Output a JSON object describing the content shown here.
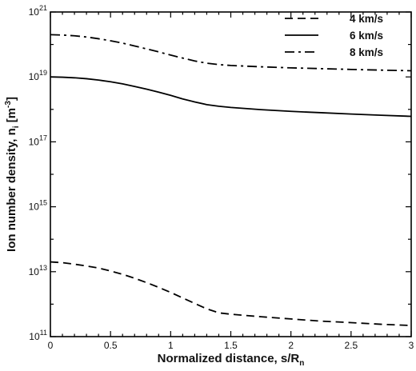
{
  "chart_data": {
    "type": "line",
    "title": "",
    "xlabel": "Normalized distance, s/R",
    "xlabel_sub": "n",
    "ylabel": "Ion number density, n",
    "ylabel_sub": "i",
    "ylabel_unit_prefix": " [m",
    "ylabel_unit_sup": "-3",
    "ylabel_unit_suffix": "]",
    "xlim": [
      0,
      3
    ],
    "ylim": [
      100000000000.0,
      1e+21
    ],
    "y_scale": "log",
    "grid": false,
    "legend_position": "top-right",
    "x_ticks": [
      {
        "value": 0,
        "label": "0"
      },
      {
        "value": 0.5,
        "label": "0.5"
      },
      {
        "value": 1,
        "label": "1"
      },
      {
        "value": 1.5,
        "label": "1.5"
      },
      {
        "value": 2,
        "label": "2"
      },
      {
        "value": 2.5,
        "label": "2.5"
      },
      {
        "value": 3,
        "label": "3"
      }
    ],
    "y_ticks": [
      {
        "value": 100000000000.0,
        "base": "10",
        "exp": "11"
      },
      {
        "value": 10000000000000.0,
        "base": "10",
        "exp": "13"
      },
      {
        "value": 1000000000000000.0,
        "base": "10",
        "exp": "15"
      },
      {
        "value": 1e+17,
        "base": "10",
        "exp": "17"
      },
      {
        "value": 1e+19,
        "base": "10",
        "exp": "19"
      },
      {
        "value": 1e+21,
        "base": "10",
        "exp": "21"
      }
    ],
    "series": [
      {
        "name": "4 km/s",
        "dash": "dashed",
        "x": [
          0,
          0.1,
          0.2,
          0.3,
          0.4,
          0.5,
          0.6,
          0.7,
          0.8,
          0.9,
          1.0,
          1.1,
          1.2,
          1.3,
          1.4,
          1.5,
          1.75,
          2.0,
          2.25,
          2.5,
          2.75,
          3.0
        ],
        "y": [
          20000000000000.0,
          19000000000000.0,
          17000000000000.0,
          15000000000000.0,
          13000000000000.0,
          10500000000000.0,
          8300000000000.0,
          6300000000000.0,
          4600000000000.0,
          3300000000000.0,
          2300000000000.0,
          1550000000000.0,
          1050000000000.0,
          720000000000.0,
          540000000000.0,
          490000000000.0,
          410000000000.0,
          350000000000.0,
          300000000000.0,
          270000000000.0,
          240000000000.0,
          220000000000.0
        ]
      },
      {
        "name": "6 km/s",
        "dash": "solid",
        "x": [
          0,
          0.1,
          0.2,
          0.3,
          0.4,
          0.5,
          0.6,
          0.7,
          0.8,
          0.9,
          1.0,
          1.1,
          1.2,
          1.3,
          1.4,
          1.5,
          1.75,
          2.0,
          2.25,
          2.5,
          2.75,
          3.0
        ],
        "y": [
          1e+19,
          9.8e+18,
          9.4e+18,
          8.8e+18,
          8e+18,
          7.1e+18,
          6.1e+18,
          5.1e+18,
          4.2e+18,
          3.4e+18,
          2.7e+18,
          2.1e+18,
          1.7e+18,
          1.4e+18,
          1.25e+18,
          1.15e+18,
          9.8e+17,
          8.7e+17,
          7.9e+17,
          7.2e+17,
          6.6e+17,
          6.1e+17
        ]
      },
      {
        "name": "8 km/s",
        "dash": "dashdot",
        "x": [
          0,
          0.1,
          0.2,
          0.3,
          0.4,
          0.5,
          0.6,
          0.7,
          0.8,
          0.9,
          1.0,
          1.1,
          1.2,
          1.3,
          1.4,
          1.5,
          1.75,
          2.0,
          2.25,
          2.5,
          2.75,
          3.0
        ],
        "y": [
          2e+20,
          1.95e+20,
          1.85e+20,
          1.7e+20,
          1.5e+20,
          1.3e+20,
          1.1e+20,
          9e+19,
          7.3e+19,
          5.9e+19,
          4.7e+19,
          3.8e+19,
          3.1e+19,
          2.65e+19,
          2.4e+19,
          2.25e+19,
          2.05e+19,
          1.9e+19,
          1.8e+19,
          1.7e+19,
          1.62e+19,
          1.55e+19
        ]
      }
    ]
  }
}
